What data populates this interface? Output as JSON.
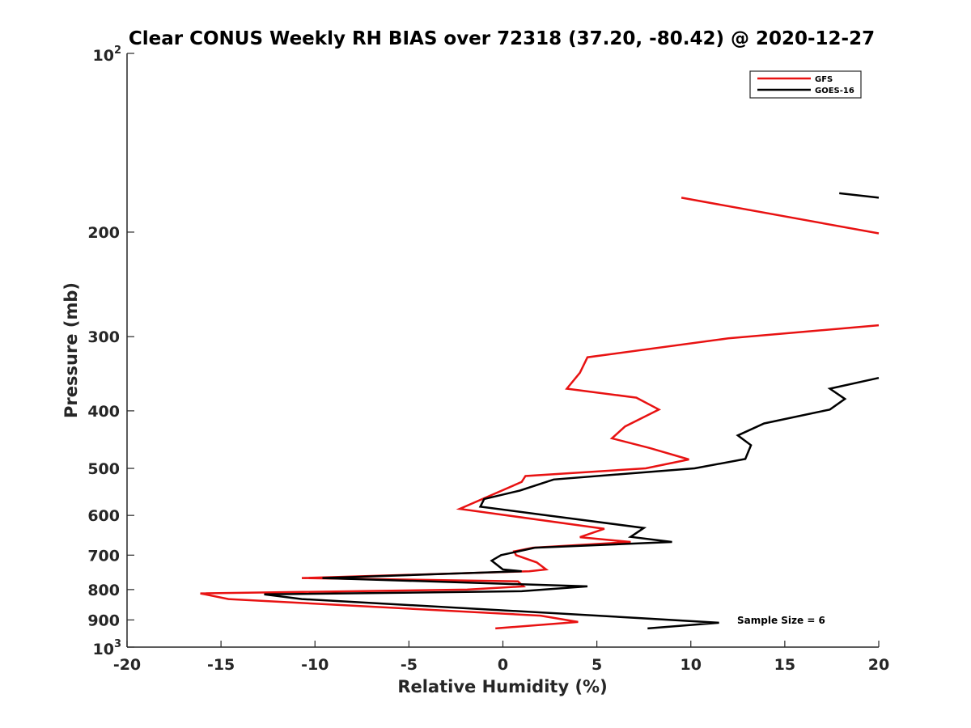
{
  "chart_data": {
    "type": "line",
    "title": "Clear CONUS Weekly RH BIAS over 72318 (37.20, -80.42) @ 2020-12-27",
    "xlabel": "Relative Humidity (%)",
    "ylabel": "Pressure (mb)",
    "xlim": [
      -20,
      20
    ],
    "ylim": [
      100,
      1000
    ],
    "yscale": "log",
    "yreversed": true,
    "x_ticks": [
      "-20",
      "-15",
      "-10",
      "-5",
      "0",
      "5",
      "10",
      "15",
      "20"
    ],
    "y_ticks": [
      {
        "value": 200,
        "label": "200"
      },
      {
        "value": 300,
        "label": "300"
      },
      {
        "value": 400,
        "label": "400"
      },
      {
        "value": 500,
        "label": "500"
      },
      {
        "value": 600,
        "label": "600"
      },
      {
        "value": 700,
        "label": "700"
      },
      {
        "value": 800,
        "label": "800"
      },
      {
        "value": 900,
        "label": "900"
      }
    ],
    "y_end_labels": {
      "top_base": "10",
      "top_exp": "2",
      "bottom_base": "10",
      "bottom_exp": "3"
    },
    "legend_position": "top-right",
    "annotation": "Sample Size = 6",
    "series": [
      {
        "name": "GFS",
        "color": "#e81212",
        "points": [
          [
            9.5,
            175
          ],
          [
            20,
            201
          ],
          null,
          [
            20,
            287
          ],
          [
            12,
            302
          ],
          [
            4.5,
            325
          ],
          [
            4.1,
            345
          ],
          [
            3.4,
            367
          ],
          [
            7.1,
            380
          ],
          [
            8.3,
            398
          ],
          [
            6.5,
            425
          ],
          [
            5.8,
            445
          ],
          [
            7.8,
            462
          ],
          [
            9.9,
            483
          ],
          [
            7.6,
            500
          ],
          [
            1.2,
            515
          ],
          [
            1.0,
            527
          ],
          [
            -2.3,
            585
          ],
          [
            5.4,
            632
          ],
          [
            4.1,
            653
          ],
          [
            6.8,
            665
          ],
          [
            1.6,
            680
          ],
          [
            0.6,
            690
          ],
          [
            0.7,
            700
          ],
          [
            1.8,
            720
          ],
          [
            2.3,
            740
          ],
          [
            1.4,
            745
          ],
          [
            -10.7,
            765
          ],
          [
            0.8,
            775
          ],
          [
            1.1,
            790
          ],
          [
            -1.9,
            800
          ],
          [
            -16.1,
            812
          ],
          [
            -14.6,
            830
          ],
          [
            2.0,
            885
          ],
          [
            4.0,
            907
          ],
          [
            -0.4,
            930
          ]
        ]
      },
      {
        "name": "GOES-16",
        "color": "#000000",
        "points": [
          [
            17.9,
            172
          ],
          [
            20,
            175
          ],
          null,
          [
            20,
            352
          ],
          [
            17.4,
            367
          ],
          [
            18.2,
            382
          ],
          [
            17.4,
            398
          ],
          [
            13.9,
            420
          ],
          [
            12.5,
            440
          ],
          [
            13.2,
            457
          ],
          [
            12.9,
            482
          ],
          [
            10.2,
            500
          ],
          [
            2.7,
            522
          ],
          [
            0.9,
            545
          ],
          [
            -1.0,
            563
          ],
          [
            -1.2,
            580
          ],
          [
            7.5,
            630
          ],
          [
            6.8,
            652
          ],
          [
            9.0,
            665
          ],
          [
            1.7,
            680
          ],
          [
            -0.1,
            700
          ],
          [
            -0.6,
            715
          ],
          [
            0.0,
            740
          ],
          [
            1.0,
            745
          ],
          [
            -9.6,
            765
          ],
          [
            4.5,
            790
          ],
          [
            1.0,
            805
          ],
          [
            -12.7,
            815
          ],
          [
            -10.7,
            830
          ],
          [
            5.8,
            888
          ],
          [
            11.5,
            910
          ],
          [
            7.7,
            930
          ]
        ]
      }
    ]
  }
}
